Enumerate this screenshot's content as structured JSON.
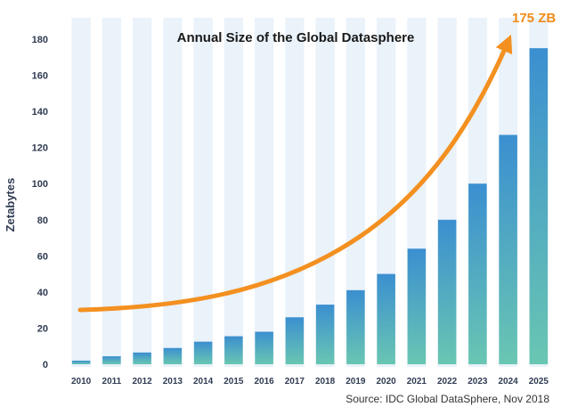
{
  "chart_data": {
    "type": "bar",
    "title": "Annual Size of the Global Datasphere",
    "xlabel": "",
    "ylabel": "Zetabytes",
    "ylim": [
      0,
      190
    ],
    "yticks": [
      0,
      20,
      40,
      60,
      80,
      100,
      120,
      140,
      160,
      180
    ],
    "categories": [
      "2010",
      "2011",
      "2012",
      "2013",
      "2014",
      "2015",
      "2016",
      "2017",
      "2018",
      "2019",
      "2020",
      "2021",
      "2022",
      "2023",
      "2024",
      "2025"
    ],
    "values": [
      2,
      4.4,
      6.5,
      9,
      12.5,
      15.5,
      18,
      26,
      33,
      41,
      50,
      64,
      80,
      100,
      127,
      175
    ],
    "annotation": "175 ZB",
    "source": "Source: IDC Global DataSphere, Nov 2018",
    "grid": false,
    "colors": {
      "bar_top": "#3b8fd0",
      "bar_bottom": "#69c6b2",
      "band": "#eaf2fa",
      "arrow": "#f39020",
      "text": "#2f3b52"
    }
  }
}
